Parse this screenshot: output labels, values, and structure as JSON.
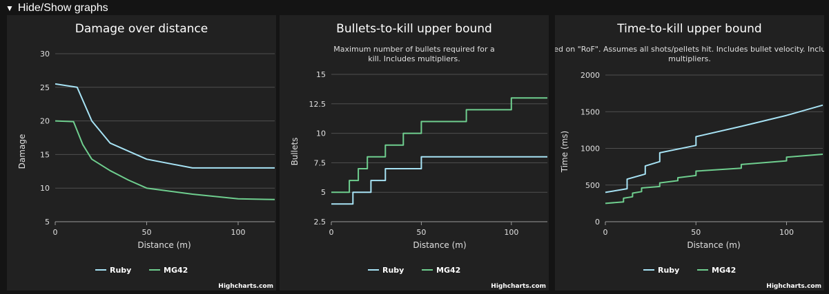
{
  "toggle": {
    "label": "Hide/Show graphs",
    "icon": "triangle-down-icon"
  },
  "credit": "Highcharts.com",
  "colors": {
    "ruby": "#a7e3f5",
    "mg42": "#6fcf8f",
    "grid": "#505050",
    "text": "#e0e0e0"
  },
  "charts": [
    {
      "chart_data": {
        "type": "line",
        "title": "Damage over distance",
        "subtitle": "",
        "xlabel": "Distance (m)",
        "ylabel": "Damage",
        "xlim": [
          0,
          120
        ],
        "ylim": [
          5,
          30
        ],
        "yticks": [
          5,
          10,
          15,
          20,
          25,
          30
        ],
        "xticks": [
          0,
          50,
          100
        ],
        "grid": true,
        "legend": "bottom-center",
        "series": [
          {
            "name": "Ruby",
            "color": "#a7e3f5",
            "x": [
              0,
              12,
              20,
              30,
              50,
              75,
              120
            ],
            "y": [
              25.5,
              25,
              20,
              16.7,
              14.3,
              13,
              13
            ]
          },
          {
            "name": "MG42",
            "color": "#6fcf8f",
            "x": [
              0,
              10,
              15,
              20,
              30,
              40,
              50,
              75,
              100,
              120
            ],
            "y": [
              20,
              19.9,
              16.5,
              14.3,
              12.6,
              11.2,
              10,
              9.1,
              8.4,
              8.3
            ]
          }
        ]
      }
    },
    {
      "chart_data": {
        "type": "line",
        "title": "Bullets-to-kill upper bound",
        "subtitle": "Maximum number of bullets required for a kill. Includes multipliers.",
        "xlabel": "Distance (m)",
        "ylabel": "Bullets",
        "xlim": [
          0,
          120
        ],
        "ylim": [
          2.5,
          15
        ],
        "yticks": [
          2.5,
          5,
          7.5,
          10,
          12.5,
          15
        ],
        "xticks": [
          0,
          50,
          100
        ],
        "grid": true,
        "legend": "bottom-center",
        "series": [
          {
            "name": "Ruby",
            "color": "#a7e3f5",
            "x": [
              0,
              12,
              12,
              22,
              22,
              30,
              30,
              50,
              50,
              120
            ],
            "y": [
              4,
              4,
              5,
              5,
              6,
              6,
              7,
              7,
              8,
              8
            ]
          },
          {
            "name": "MG42",
            "color": "#6fcf8f",
            "x": [
              0,
              10,
              10,
              15,
              15,
              20,
              20,
              30,
              30,
              40,
              40,
              50,
              50,
              75,
              75,
              100,
              100,
              120
            ],
            "y": [
              5,
              5,
              6,
              6,
              7,
              7,
              8,
              8,
              9,
              9,
              10,
              10,
              11,
              11,
              12,
              12,
              13,
              13
            ]
          }
        ]
      }
    },
    {
      "chart_data": {
        "type": "line",
        "title": "Time-to-kill upper bound",
        "subtitle": "Based on \"RoF\". Assumes all shots/pellets hit. Includes bullet velocity. Includes multipliers.",
        "xlabel": "Distance (m)",
        "ylabel": "Time (ms)",
        "xlim": [
          0,
          120
        ],
        "ylim": [
          0,
          2000
        ],
        "yticks": [
          0,
          500,
          1000,
          1500,
          2000
        ],
        "xticks": [
          0,
          50,
          100
        ],
        "grid": true,
        "legend": "bottom-center",
        "series": [
          {
            "name": "Ruby",
            "color": "#a7e3f5",
            "x": [
              0,
              12,
              12,
              22,
              22,
              30,
              30,
              50,
              50,
              75,
              100,
              120
            ],
            "y": [
              400,
              450,
              580,
              650,
              760,
              820,
              940,
              1040,
              1160,
              1300,
              1450,
              1590
            ]
          },
          {
            "name": "MG42",
            "color": "#6fcf8f",
            "x": [
              0,
              10,
              10,
              15,
              15,
              20,
              20,
              30,
              30,
              40,
              40,
              50,
              50,
              75,
              75,
              100,
              100,
              120
            ],
            "y": [
              250,
              270,
              320,
              340,
              390,
              410,
              460,
              480,
              530,
              560,
              600,
              630,
              690,
              730,
              780,
              830,
              880,
              920
            ]
          }
        ]
      }
    }
  ]
}
